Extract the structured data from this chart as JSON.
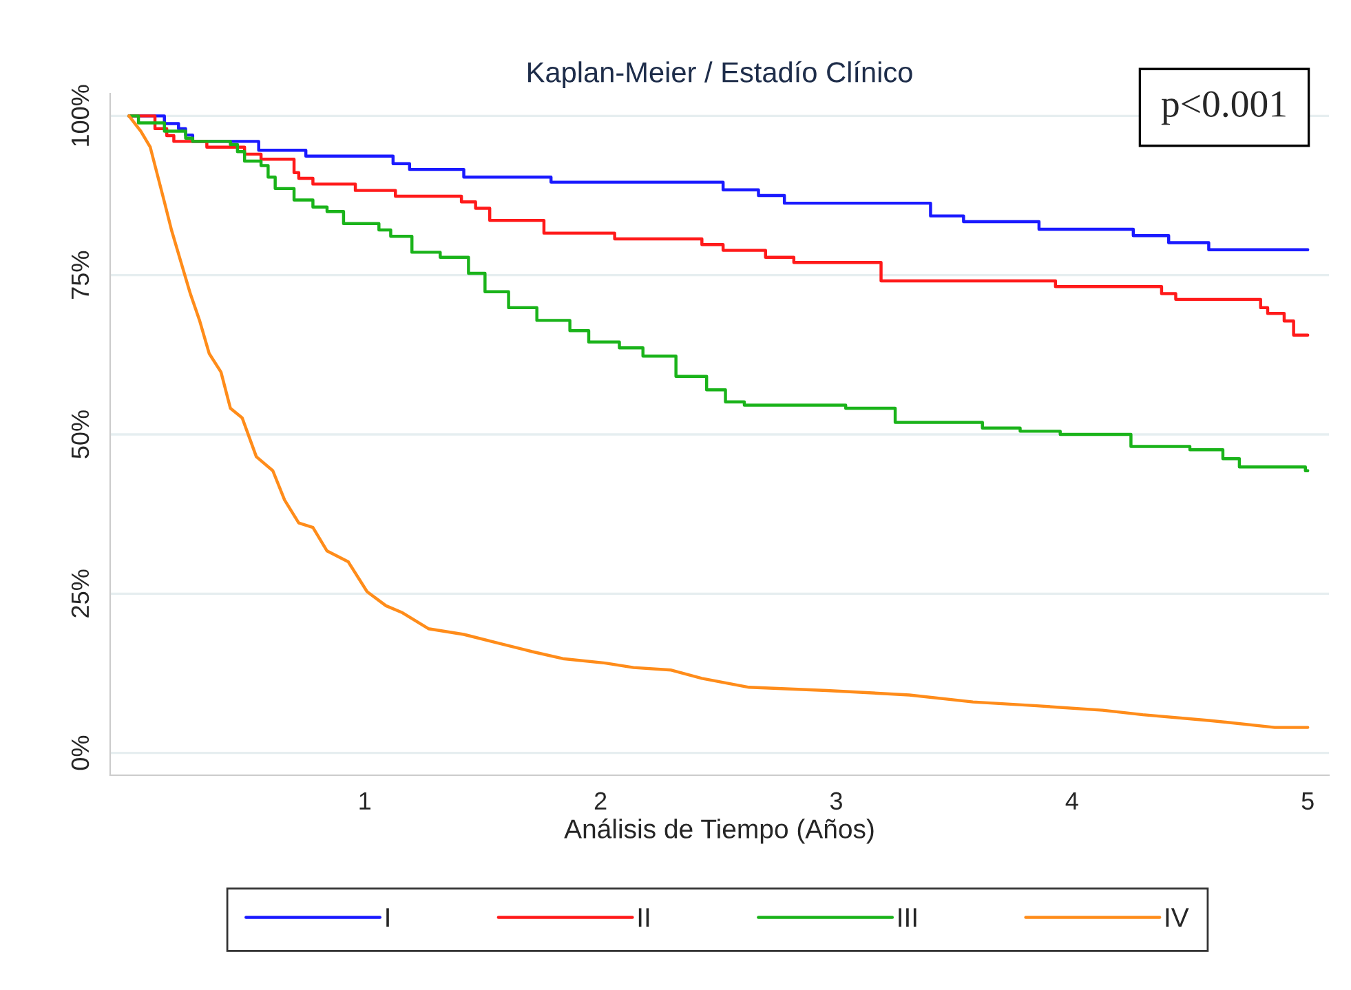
{
  "chart_data": {
    "type": "step",
    "title": "Kaplan-Meier / Estadío Clínico",
    "xlabel": "Análisis de Tiempo (Años)",
    "xlim": [
      -0.08,
      5.09
    ],
    "xticks": [
      1,
      2,
      3,
      4,
      5
    ],
    "ylim": [
      -3.5,
      103.5
    ],
    "yticks": [
      {
        "value": 0,
        "label": "0%"
      },
      {
        "value": 25,
        "label": "25%"
      },
      {
        "value": 50,
        "label": "50%"
      },
      {
        "value": 75,
        "label": "75%"
      },
      {
        "value": 100,
        "label": "100%"
      }
    ],
    "grid": "y",
    "legend": "bottom",
    "annotations": [
      "p<0.001"
    ],
    "series": [
      {
        "name": "I",
        "color": "#1a1aff",
        "x": [
          0,
          0.15,
          0.21,
          0.24,
          0.27,
          0.55,
          0.75,
          1.12,
          1.19,
          1.42,
          1.79,
          2.52,
          2.67,
          2.78,
          3.4,
          3.54,
          3.86,
          4.26,
          4.41,
          4.58,
          5.0
        ],
        "values": [
          100,
          98.8,
          98,
          97,
          96,
          94.6,
          93.7,
          92.5,
          91.6,
          90.4,
          89.6,
          88.4,
          87.5,
          86.3,
          84.3,
          83.4,
          82.2,
          81.2,
          80.1,
          79.0,
          79.0
        ]
      },
      {
        "name": "II",
        "color": "#ff1a1a",
        "x": [
          0,
          0.11,
          0.16,
          0.19,
          0.33,
          0.49,
          0.56,
          0.7,
          0.72,
          0.78,
          0.96,
          1.13,
          1.41,
          1.47,
          1.53,
          1.76,
          2.06,
          2.43,
          2.52,
          2.7,
          2.82,
          3.19,
          3.93,
          4.38,
          4.44,
          4.8,
          4.83,
          4.9,
          4.94,
          5.0
        ],
        "values": [
          100,
          98.0,
          96.9,
          96,
          95.1,
          94.0,
          93.2,
          91.1,
          90.2,
          89.3,
          88.3,
          87.4,
          86.5,
          85.5,
          83.6,
          81.6,
          80.7,
          79.8,
          78.9,
          77.8,
          77.0,
          74.1,
          73.2,
          72.1,
          71.2,
          69.9,
          69.0,
          67.8,
          65.6,
          65.6
        ]
      },
      {
        "name": "III",
        "color": "#1ab31a",
        "x": [
          0,
          0.04,
          0.15,
          0.24,
          0.27,
          0.43,
          0.46,
          0.49,
          0.56,
          0.59,
          0.62,
          0.7,
          0.78,
          0.84,
          0.91,
          1.06,
          1.11,
          1.2,
          1.32,
          1.44,
          1.51,
          1.61,
          1.73,
          1.87,
          1.95,
          2.08,
          2.18,
          2.32,
          2.45,
          2.53,
          2.61,
          3.04,
          3.25,
          3.62,
          3.78,
          3.95,
          4.25,
          4.5,
          4.64,
          4.71,
          4.99,
          5.0
        ],
        "values": [
          100,
          98.9,
          97.6,
          96.5,
          96,
          95.5,
          94.4,
          92.9,
          92.2,
          90.4,
          88.6,
          86.8,
          85.7,
          85.0,
          83.1,
          82.1,
          81.1,
          78.6,
          77.8,
          75.3,
          72.4,
          69.9,
          67.9,
          66.3,
          64.5,
          63.6,
          62.3,
          59.1,
          57.0,
          55.1,
          54.6,
          54.1,
          51.9,
          51.0,
          50.5,
          50.0,
          48.1,
          47.6,
          46.2,
          44.9,
          44.3,
          44.3
        ]
      },
      {
        "name": "IV",
        "color": "#ff8c1a",
        "type": "line",
        "x": [
          0,
          0.05,
          0.09,
          0.12,
          0.15,
          0.18,
          0.22,
          0.26,
          0.3,
          0.34,
          0.39,
          0.43,
          0.48,
          0.54,
          0.61,
          0.66,
          0.72,
          0.78,
          0.84,
          0.93,
          1.01,
          1.09,
          1.16,
          1.27,
          1.42,
          1.56,
          1.71,
          1.84,
          2.02,
          2.14,
          2.3,
          2.43,
          2.63,
          2.96,
          3.31,
          3.58,
          3.85,
          4.13,
          4.3,
          4.58,
          4.86,
          5.0
        ],
        "values": [
          100,
          97.6,
          95.1,
          90.8,
          86.5,
          82.1,
          77.1,
          72.1,
          67.8,
          62.7,
          59.8,
          54.1,
          52.6,
          46.5,
          44.3,
          39.7,
          36.1,
          35.4,
          31.7,
          30.0,
          25.3,
          23.1,
          22.0,
          19.5,
          18.6,
          17.3,
          15.9,
          14.8,
          14.1,
          13.4,
          13.0,
          11.7,
          10.3,
          9.8,
          9.1,
          8.0,
          7.4,
          6.7,
          6.0,
          5.1,
          4.0,
          4.0
        ]
      }
    ]
  }
}
